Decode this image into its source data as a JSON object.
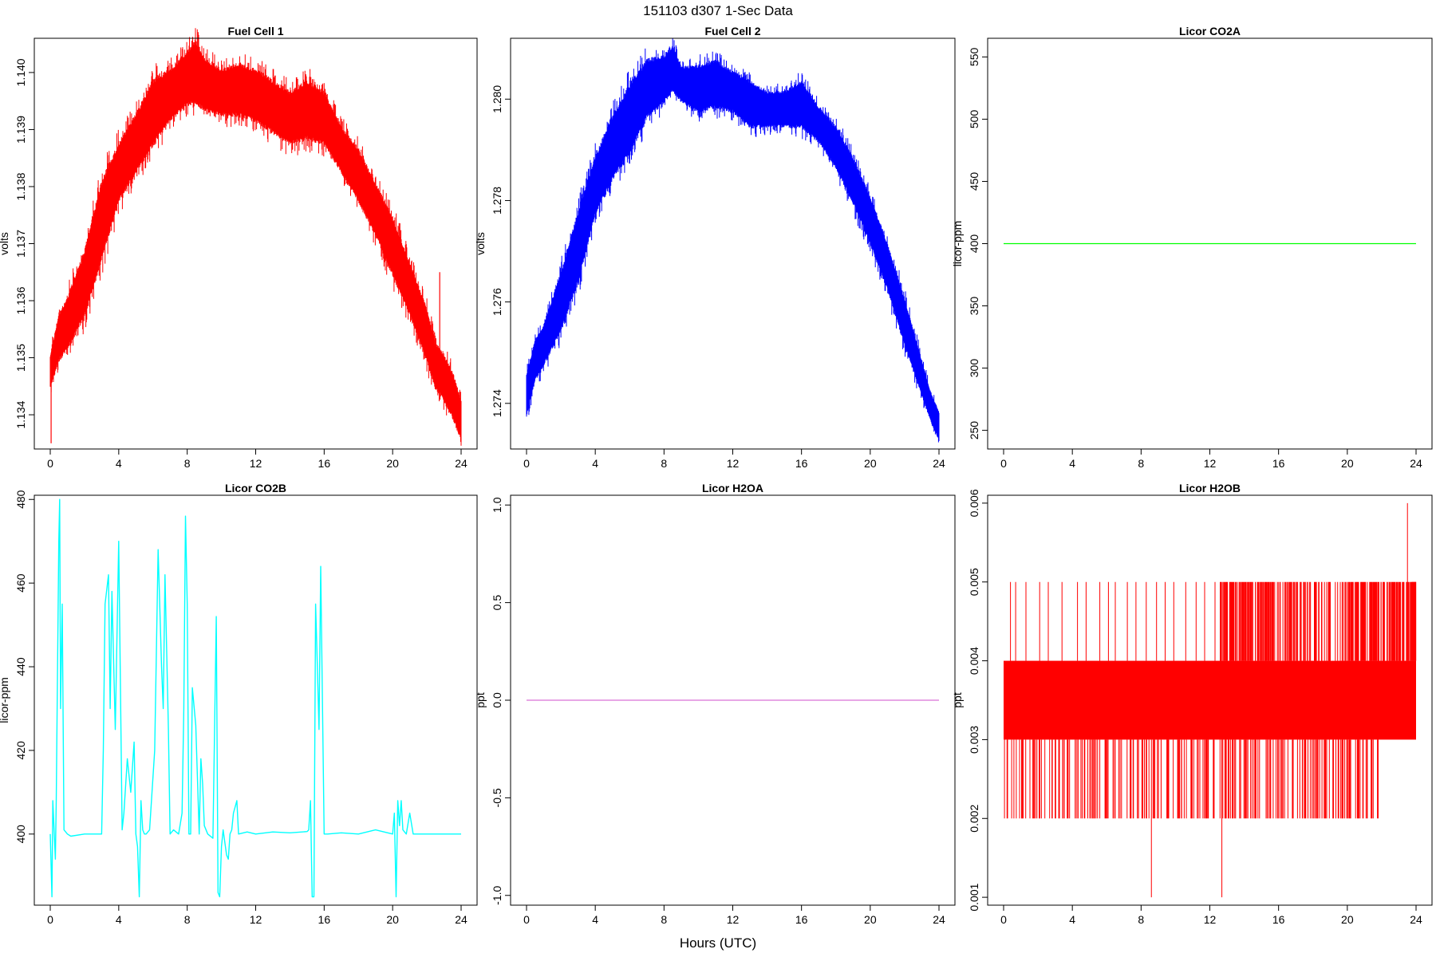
{
  "figure": {
    "title": "151103   d307   1-Sec Data",
    "xlabel": "Hours (UTC)"
  },
  "chart_data": [
    {
      "type": "line",
      "title": "Fuel Cell 1",
      "ylabel": "volts",
      "color": "#ff0000",
      "xlim": [
        0,
        24
      ],
      "ylim": [
        1.1334,
        1.1406
      ],
      "xticks": [
        0,
        4,
        8,
        12,
        16,
        20,
        24
      ],
      "yticks": [
        1.134,
        1.135,
        1.136,
        1.137,
        1.138,
        1.139,
        1.14
      ],
      "ytick_labels": [
        "1.134",
        "1.135",
        "1.136",
        "1.137",
        "1.138",
        "1.139",
        "1.140"
      ],
      "envelope": {
        "x": [
          0,
          0.5,
          1,
          2,
          3,
          4,
          5,
          6,
          7,
          8,
          8.5,
          9,
          10,
          11,
          12,
          13,
          14,
          15,
          16,
          17,
          18,
          19,
          20,
          21,
          22,
          22.5,
          23,
          23.5,
          24
        ],
        "low": [
          1.1345,
          1.135,
          1.1352,
          1.1358,
          1.1368,
          1.1378,
          1.1383,
          1.1388,
          1.1392,
          1.1395,
          1.1395,
          1.1394,
          1.1393,
          1.1393,
          1.1392,
          1.139,
          1.1388,
          1.1389,
          1.1388,
          1.1383,
          1.1378,
          1.1372,
          1.1365,
          1.1358,
          1.135,
          1.1345,
          1.1343,
          1.134,
          1.1336
        ],
        "high": [
          1.135,
          1.1357,
          1.136,
          1.1368,
          1.138,
          1.1387,
          1.1392,
          1.1398,
          1.14,
          1.1403,
          1.1405,
          1.1402,
          1.14,
          1.1401,
          1.14,
          1.1398,
          1.1396,
          1.1398,
          1.1396,
          1.139,
          1.1386,
          1.138,
          1.1374,
          1.1366,
          1.1358,
          1.1352,
          1.135,
          1.1347,
          1.1342
        ]
      },
      "spikes": [
        {
          "x": 0.05,
          "low": 1.1335,
          "high": 1.135
        },
        {
          "x": 22.75,
          "low": 1.135,
          "high": 1.1365
        }
      ]
    },
    {
      "type": "line",
      "title": "Fuel Cell 2",
      "ylabel": "volts",
      "color": "#0000ff",
      "xlim": [
        0,
        24
      ],
      "ylim": [
        1.2731,
        1.2812
      ],
      "xticks": [
        0,
        4,
        8,
        12,
        16,
        20,
        24
      ],
      "yticks": [
        1.274,
        1.276,
        1.278,
        1.28
      ],
      "ytick_labels": [
        "1.274",
        "1.276",
        "1.278",
        "1.280"
      ],
      "envelope": {
        "x": [
          0,
          0.5,
          1,
          2,
          3,
          4,
          5,
          6,
          7,
          8,
          8.5,
          9,
          10,
          11,
          12,
          13,
          14,
          15,
          16,
          17,
          18,
          19,
          20,
          21,
          22,
          23,
          23.5,
          24
        ],
        "low": [
          1.2738,
          1.2745,
          1.2748,
          1.2755,
          1.2765,
          1.2778,
          1.2785,
          1.279,
          1.2797,
          1.28,
          1.2802,
          1.28,
          1.2798,
          1.2799,
          1.2798,
          1.2795,
          1.2795,
          1.2795,
          1.2795,
          1.2792,
          1.2787,
          1.278,
          1.2772,
          1.2763,
          1.2752,
          1.2742,
          1.2737,
          1.2733
        ],
        "high": [
          1.2745,
          1.2752,
          1.2755,
          1.2765,
          1.2777,
          1.2788,
          1.2796,
          1.2802,
          1.2807,
          1.2808,
          1.281,
          1.2806,
          1.2806,
          1.2807,
          1.2805,
          1.2803,
          1.2801,
          1.2801,
          1.2803,
          1.2798,
          1.2794,
          1.2788,
          1.278,
          1.2771,
          1.276,
          1.2748,
          1.2742,
          1.2738
        ]
      },
      "spikes": []
    },
    {
      "type": "line",
      "title": "Licor CO2A",
      "ylabel": "licor-ppm",
      "color": "#00ff00",
      "xlim": [
        0,
        24
      ],
      "ylim": [
        235,
        565
      ],
      "xticks": [
        0,
        4,
        8,
        12,
        16,
        20,
        24
      ],
      "yticks": [
        250,
        300,
        350,
        400,
        450,
        500,
        550
      ],
      "ytick_labels": [
        "250",
        "300",
        "350",
        "400",
        "450",
        "500",
        "550"
      ],
      "x": [
        0,
        24
      ],
      "y": [
        400,
        400
      ]
    },
    {
      "type": "line",
      "title": "Licor CO2B",
      "ylabel": "licor-ppm",
      "color": "#00ffff",
      "xlim": [
        0,
        24
      ],
      "ylim": [
        383,
        481
      ],
      "xticks": [
        0,
        4,
        8,
        12,
        16,
        20,
        24
      ],
      "yticks": [
        400,
        420,
        440,
        460,
        480
      ],
      "ytick_labels": [
        "400",
        "420",
        "440",
        "460",
        "480"
      ],
      "x": [
        0,
        0.1,
        0.15,
        0.3,
        0.35,
        0.5,
        0.55,
        0.6,
        0.7,
        0.8,
        1.0,
        1.2,
        2.0,
        3.0,
        3.1,
        3.2,
        3.4,
        3.5,
        3.6,
        3.8,
        4.0,
        4.2,
        4.3,
        4.5,
        4.7,
        4.9,
        5.0,
        5.1,
        5.2,
        5.3,
        5.4,
        5.5,
        5.6,
        5.8,
        6.1,
        6.3,
        6.5,
        6.6,
        6.7,
        6.9,
        7.0,
        7.2,
        7.5,
        7.7,
        7.8,
        7.9,
        8.0,
        8.1,
        8.2,
        8.3,
        8.5,
        8.7,
        8.8,
        8.9,
        9.0,
        9.2,
        9.5,
        9.7,
        9.8,
        9.9,
        10.0,
        10.1,
        10.3,
        10.4,
        10.5,
        10.6,
        10.7,
        10.9,
        11.0,
        11.5,
        12.0,
        13.0,
        14.0,
        15.0,
        15.1,
        15.2,
        15.3,
        15.4,
        15.5,
        15.6,
        15.7,
        15.8,
        16.0,
        16.2,
        17.0,
        18.0,
        19.0,
        20.0,
        20.1,
        20.2,
        20.3,
        20.4,
        20.5,
        20.6,
        20.8,
        21.0,
        21.2,
        22.0,
        23.0,
        24.0
      ],
      "y": [
        400,
        385,
        408,
        394,
        408,
        470,
        480,
        430,
        455,
        401,
        400,
        399.5,
        400,
        400,
        420,
        455,
        462,
        430,
        458,
        425,
        470,
        401,
        405,
        418,
        410,
        422,
        400,
        397,
        385,
        408,
        401,
        400,
        400,
        401,
        420,
        468,
        440,
        430,
        462,
        425,
        400,
        401,
        400,
        405,
        430,
        476,
        455,
        400,
        400,
        435,
        426,
        400,
        418,
        412,
        402,
        400,
        399,
        452,
        386,
        385,
        397,
        401,
        395,
        394,
        400,
        401,
        405,
        408,
        400,
        400.5,
        400,
        400.5,
        400.3,
        400.6,
        401,
        408,
        385,
        385,
        455,
        440,
        425,
        464,
        400,
        400,
        400.3,
        400,
        401,
        400,
        405,
        385,
        408,
        402,
        408,
        401,
        400,
        405,
        400,
        400,
        400,
        400
      ]
    },
    {
      "type": "line",
      "title": "Licor H2OA",
      "ylabel": "ppt",
      "color": "#da70d6",
      "xlim": [
        0,
        24
      ],
      "ylim": [
        -1.05,
        1.05
      ],
      "xticks": [
        0,
        4,
        8,
        12,
        16,
        20,
        24
      ],
      "yticks": [
        -1.0,
        -0.5,
        0.0,
        0.5,
        1.0
      ],
      "ytick_labels": [
        "-1.0",
        "-0.5",
        "0.0",
        "0.5",
        "1.0"
      ],
      "x": [
        0,
        24
      ],
      "y": [
        0,
        0
      ]
    },
    {
      "type": "line",
      "title": "Licor H2OB",
      "ylabel": "ppt",
      "color": "#ff0000",
      "xlim": [
        0,
        24
      ],
      "ylim": [
        0.0009,
        0.0061
      ],
      "xticks": [
        0,
        4,
        8,
        12,
        16,
        20,
        24
      ],
      "yticks": [
        0.001,
        0.002,
        0.003,
        0.004,
        0.005,
        0.006
      ],
      "ytick_labels": [
        "0.001",
        "0.002",
        "0.003",
        "0.004",
        "0.005",
        "0.006"
      ],
      "band": {
        "x": [
          0,
          24
        ],
        "low": 0.003,
        "high": 0.004
      },
      "upper_band": {
        "x": [
          23.7,
          24
        ],
        "low": 0.004,
        "high": 0.005
      },
      "spikes_high": [
        0.4,
        0.7,
        1.3,
        2.1,
        2.6,
        3.4,
        4.3,
        4.8,
        5.6,
        6.1,
        6.5,
        7.2,
        7.7,
        8.3,
        8.9,
        9.4,
        9.9,
        10.6,
        11.2,
        11.7,
        12.3,
        12.8,
        13.2,
        13.6,
        14.1,
        14.5,
        14.9,
        15.3,
        15.7,
        16.1,
        16.5,
        16.9,
        17.3,
        17.7,
        18.1,
        18.5,
        18.9,
        19.3,
        19.7,
        20.1,
        20.5,
        20.9,
        21.3,
        21.7,
        22.1,
        22.5,
        22.9,
        23.3
      ],
      "spikes_low": [
        0.2,
        0.6,
        1.1,
        1.7,
        2.4,
        3.0,
        3.7,
        4.5,
        5.2,
        5.9,
        6.7,
        7.4,
        8.1,
        8.8,
        9.5,
        10.2,
        10.9,
        11.6,
        12.2,
        12.9,
        13.5,
        14.2,
        14.8,
        15.5,
        16.2,
        16.8,
        17.4,
        18.1,
        18.8,
        19.5,
        20.2,
        20.9,
        21.5
      ],
      "dense_high": [
        12.5,
        24
      ],
      "dense_low": [
        0,
        21.8
      ],
      "outliers": [
        {
          "x": 8.6,
          "low": 0.001,
          "high": 0.003
        },
        {
          "x": 12.7,
          "low": 0.001,
          "high": 0.003
        },
        {
          "x": 23.5,
          "low": 0.004,
          "high": 0.006
        }
      ]
    }
  ]
}
